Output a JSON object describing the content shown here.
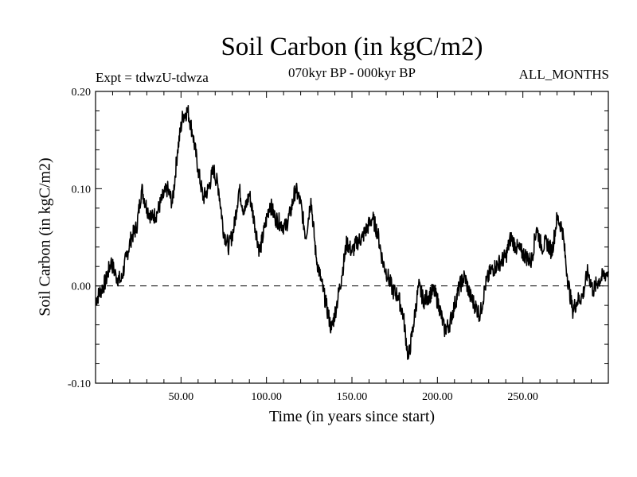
{
  "chart_data": {
    "type": "line",
    "title": "Soil Carbon (in kgC/m2)",
    "expt_label": "Expt = tdwzU-tdwza",
    "period_label": "070kyr BP - 000kyr BP",
    "season_label": "ALL_MONTHS",
    "xlabel": "Time (in years since start)",
    "ylabel": "Soil Carbon (in kgC/m2)",
    "xlim": [
      0,
      300
    ],
    "ylim": [
      -0.1,
      0.2
    ],
    "xticks": [
      50,
      100,
      150,
      200,
      250
    ],
    "xtick_labels": [
      "50.00",
      "100.00",
      "150.00",
      "200.00",
      "250.00"
    ],
    "yticks": [
      -0.1,
      0.0,
      0.1,
      0.2
    ],
    "ytick_labels": [
      "-0.10",
      "0.00",
      "0.10",
      "0.20"
    ],
    "reference_line": {
      "y": 0.0,
      "style": "dashed"
    },
    "grid": false,
    "line_color": "#000000",
    "x": [
      0,
      3,
      6,
      9,
      12,
      15,
      18,
      21,
      24,
      27,
      30,
      33,
      36,
      39,
      42,
      45,
      48,
      51,
      54,
      57,
      60,
      63,
      66,
      69,
      72,
      75,
      78,
      81,
      84,
      87,
      90,
      93,
      96,
      99,
      102,
      105,
      108,
      111,
      114,
      117,
      120,
      123,
      126,
      129,
      132,
      135,
      138,
      141,
      144,
      147,
      150,
      153,
      156,
      159,
      162,
      165,
      168,
      171,
      174,
      177,
      180,
      183,
      186,
      189,
      192,
      195,
      198,
      201,
      204,
      207,
      210,
      213,
      216,
      219,
      222,
      225,
      228,
      231,
      234,
      237,
      240,
      243,
      246,
      249,
      252,
      255,
      258,
      261,
      264,
      267,
      270,
      273,
      276,
      279,
      282,
      285,
      288,
      291,
      294,
      297,
      300
    ],
    "y": [
      -0.015,
      -0.005,
      0.005,
      0.025,
      0.01,
      0.005,
      0.03,
      0.05,
      0.06,
      0.1,
      0.08,
      0.07,
      0.075,
      0.09,
      0.1,
      0.085,
      0.14,
      0.175,
      0.18,
      0.155,
      0.12,
      0.09,
      0.1,
      0.12,
      0.1,
      0.055,
      0.04,
      0.06,
      0.1,
      0.075,
      0.095,
      0.065,
      0.035,
      0.06,
      0.085,
      0.07,
      0.065,
      0.06,
      0.075,
      0.1,
      0.085,
      0.05,
      0.09,
      0.03,
      0.005,
      -0.02,
      -0.045,
      -0.02,
      0.01,
      0.045,
      0.035,
      0.045,
      0.05,
      0.06,
      0.07,
      0.055,
      0.025,
      0.01,
      -0.005,
      -0.01,
      -0.03,
      -0.075,
      -0.04,
      0.0,
      -0.015,
      -0.01,
      -0.005,
      -0.02,
      -0.045,
      -0.04,
      -0.02,
      0.0,
      0.01,
      -0.01,
      -0.02,
      -0.03,
      0.0,
      0.015,
      0.02,
      0.025,
      0.03,
      0.05,
      0.04,
      0.035,
      0.03,
      0.025,
      0.06,
      0.04,
      0.045,
      0.035,
      0.07,
      0.06,
      0.01,
      -0.025,
      -0.015,
      -0.01,
      0.015,
      -0.005,
      0.005,
      0.01,
      0.015
    ]
  }
}
